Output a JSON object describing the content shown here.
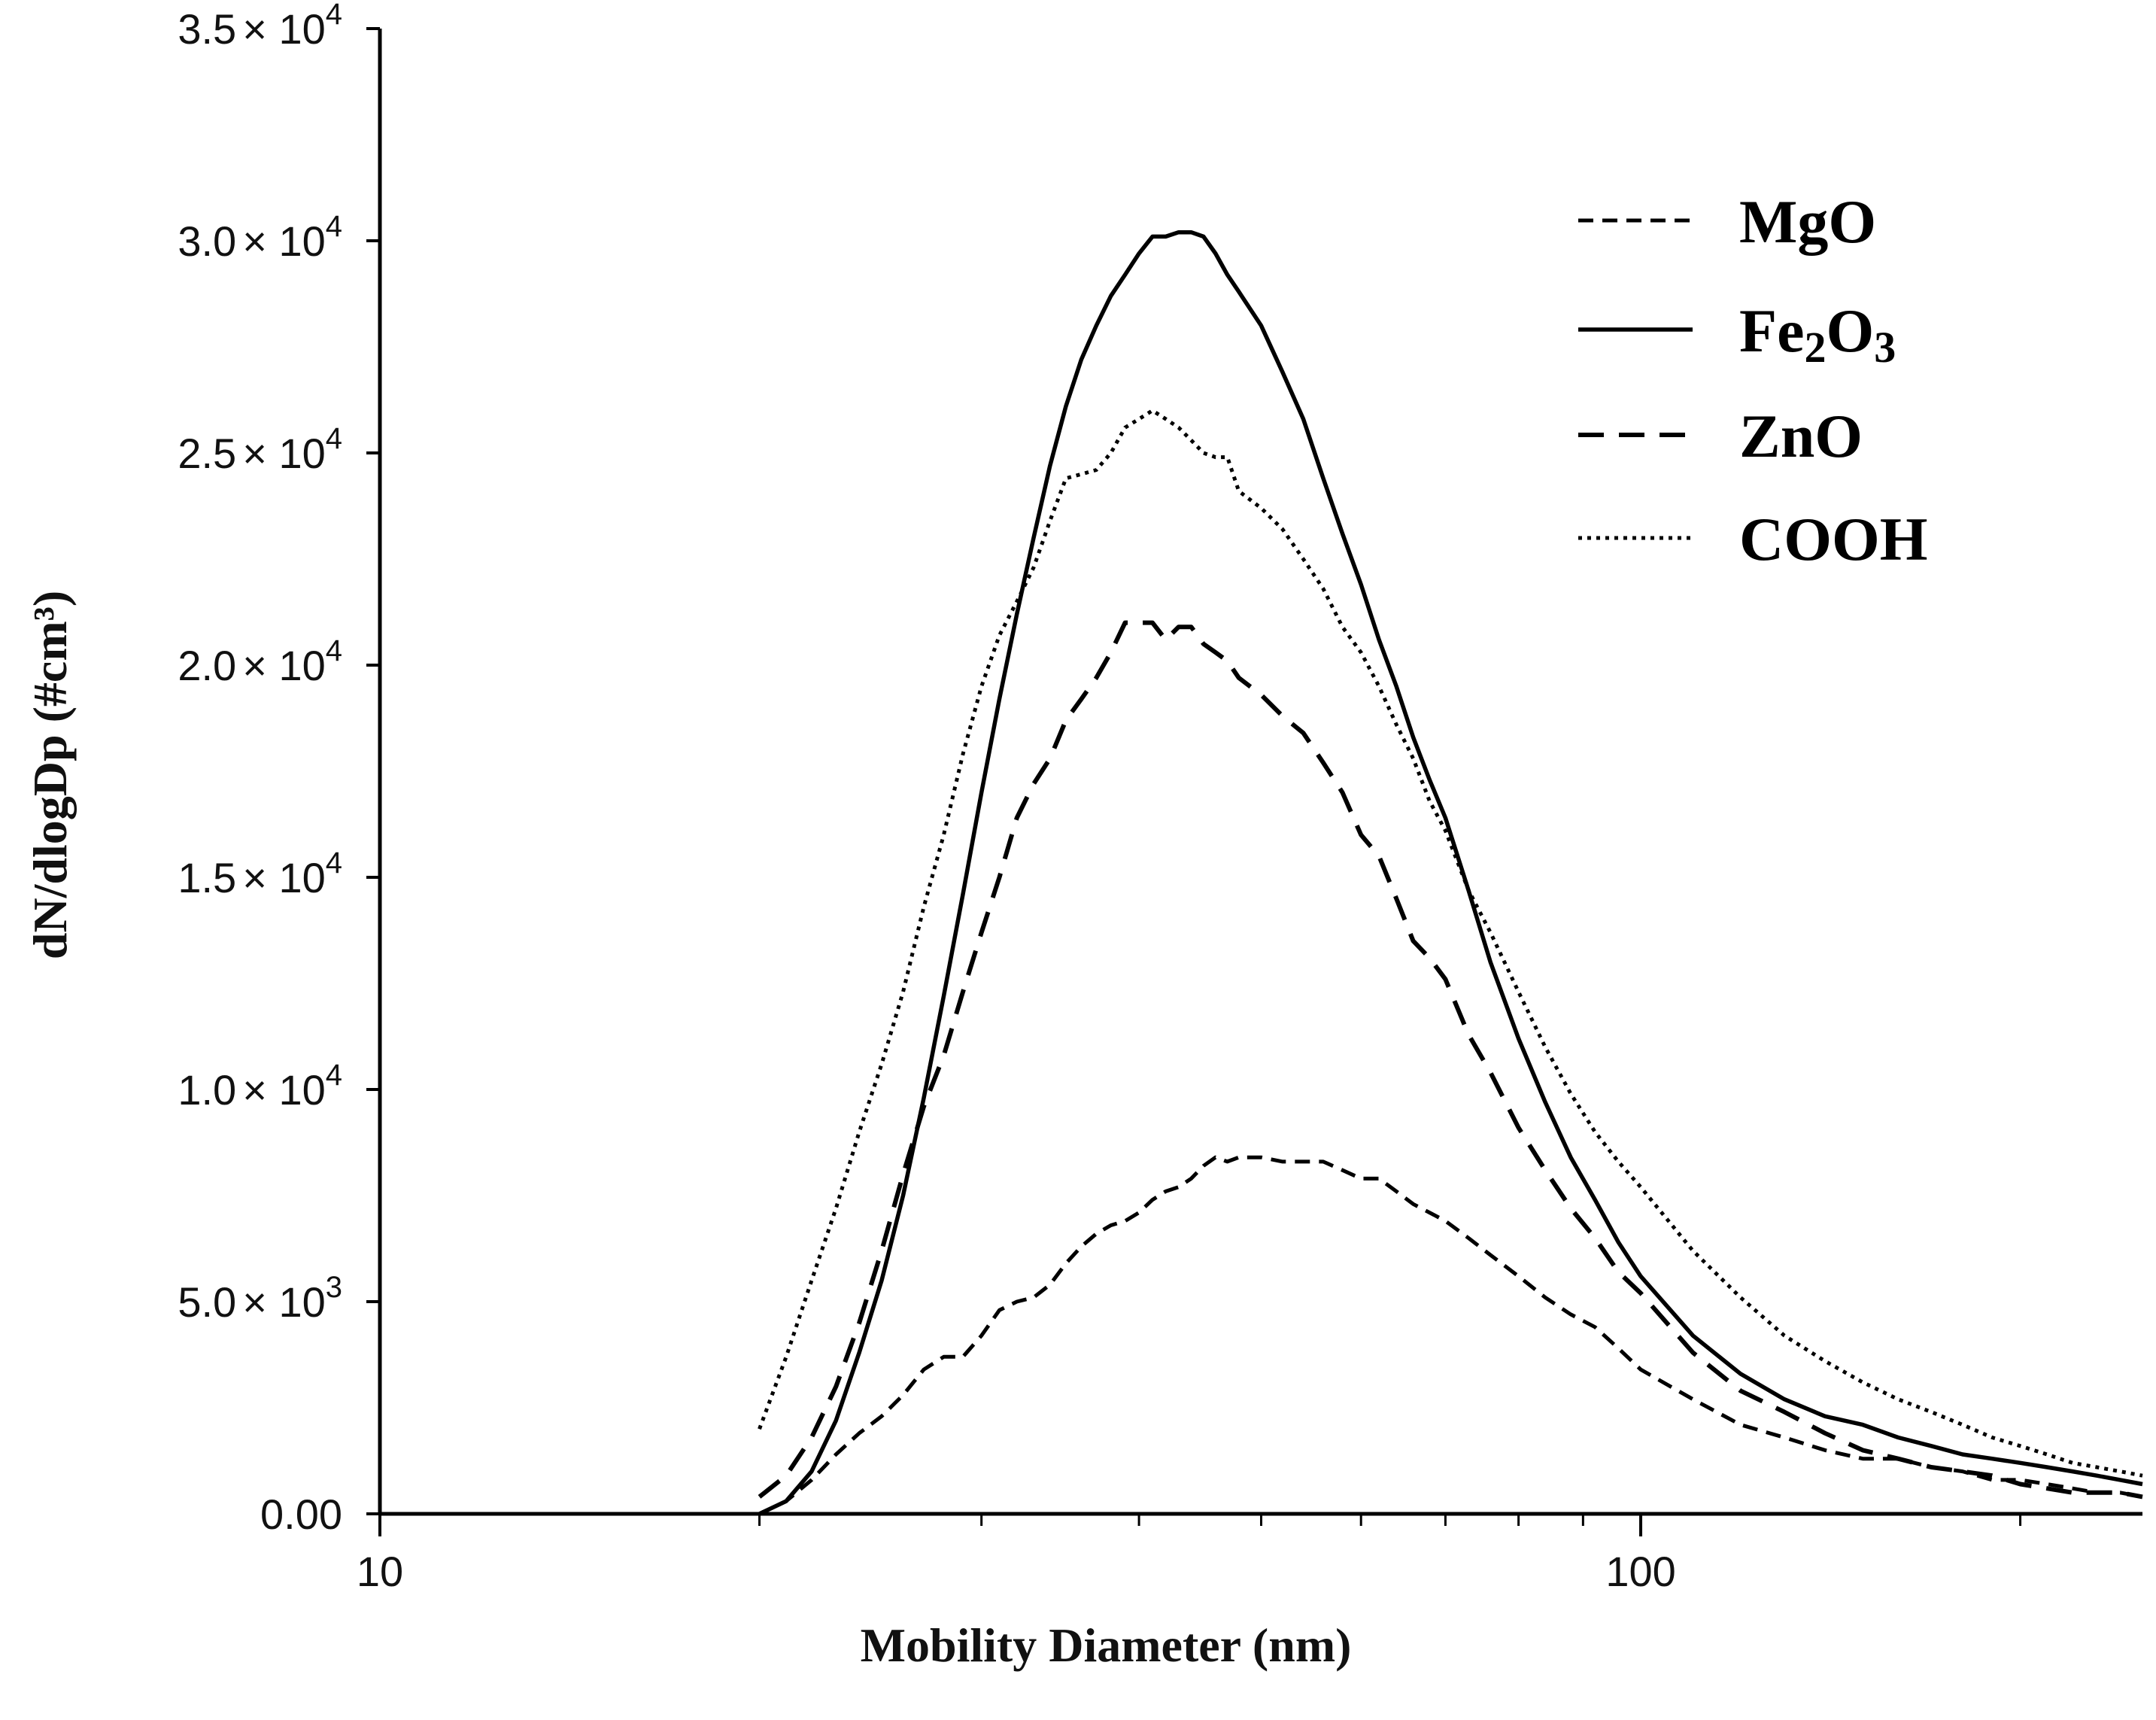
{
  "chart_data": {
    "type": "line",
    "title": "",
    "xlabel": "Mobility Diameter (nm)",
    "ylabel": "dN/dlogDp (#cm³)",
    "x_scale": "log",
    "xlim": [
      10,
      250
    ],
    "ylim": [
      0,
      35000
    ],
    "x_ticks": [
      {
        "value": 10,
        "label": "10"
      },
      {
        "value": 100,
        "label": "100"
      }
    ],
    "x_minor_ticks": [
      20,
      30,
      40,
      50,
      60,
      70,
      80,
      90,
      200
    ],
    "y_ticks": [
      {
        "value": 0,
        "mantissa": "0.00",
        "exp": ""
      },
      {
        "value": 5000,
        "mantissa": "5.0",
        "exp": "3"
      },
      {
        "value": 10000,
        "mantissa": "1.0",
        "exp": "4"
      },
      {
        "value": 15000,
        "mantissa": "1.5",
        "exp": "4"
      },
      {
        "value": 20000,
        "mantissa": "2.0",
        "exp": "4"
      },
      {
        "value": 25000,
        "mantissa": "2.5",
        "exp": "4"
      },
      {
        "value": 30000,
        "mantissa": "3.0",
        "exp": "4"
      },
      {
        "value": 35000,
        "mantissa": "3.5",
        "exp": "4"
      }
    ],
    "times_symbol": "×",
    "grid": false,
    "legend_position": "top-right",
    "series": [
      {
        "name": "MgO",
        "style": "dash",
        "x": [
          20,
          21,
          22,
          23,
          24,
          25,
          26,
          27,
          28,
          29,
          30,
          31,
          32,
          33,
          34,
          35,
          36,
          37,
          38,
          39,
          40,
          41,
          42,
          43,
          44,
          45,
          46,
          47,
          48,
          50,
          52,
          54,
          56,
          58,
          60,
          62,
          64,
          66,
          68,
          70,
          73,
          76,
          80,
          84,
          88,
          92,
          96,
          100,
          110,
          120,
          130,
          140,
          150,
          160,
          170,
          180,
          190,
          200,
          210,
          220,
          230,
          240,
          250
        ],
        "y": [
          0,
          300,
          800,
          1400,
          1900,
          2300,
          2800,
          3400,
          3700,
          3700,
          4200,
          4800,
          5000,
          5100,
          5400,
          5900,
          6300,
          6600,
          6800,
          6900,
          7100,
          7400,
          7600,
          7700,
          7900,
          8200,
          8400,
          8300,
          8400,
          8400,
          8300,
          8300,
          8300,
          8100,
          7900,
          7900,
          7600,
          7300,
          7100,
          6900,
          6500,
          6100,
          5600,
          5100,
          4700,
          4400,
          3900,
          3400,
          2700,
          2100,
          1800,
          1500,
          1300,
          1300,
          1100,
          1000,
          800,
          800,
          700,
          600,
          500,
          500,
          400
        ]
      },
      {
        "name": "Fe₂O₃",
        "name_base": "Fe",
        "name_sub1": "2",
        "name_mid": "O",
        "name_sub2": "3",
        "style": "solid",
        "x": [
          20,
          21,
          22,
          23,
          24,
          25,
          26,
          27,
          28,
          29,
          30,
          31,
          32,
          33,
          34,
          35,
          36,
          37,
          38,
          39,
          40,
          41,
          42,
          43,
          44,
          45,
          46,
          47,
          48,
          50,
          52,
          54,
          56,
          58,
          60,
          62,
          64,
          66,
          68,
          70,
          73,
          76,
          80,
          84,
          88,
          92,
          96,
          100,
          110,
          120,
          130,
          140,
          150,
          160,
          170,
          180,
          190,
          200,
          210,
          220,
          230,
          240,
          250
        ],
        "y": [
          0,
          300,
          1000,
          2200,
          3800,
          5500,
          7500,
          9800,
          12200,
          14600,
          17000,
          19200,
          21200,
          23000,
          24700,
          26100,
          27200,
          28000,
          28700,
          29200,
          29700,
          30100,
          30100,
          30200,
          30200,
          30100,
          29700,
          29200,
          28800,
          28000,
          26900,
          25800,
          24400,
          23100,
          21900,
          20600,
          19500,
          18300,
          17300,
          16400,
          14700,
          13000,
          11200,
          9700,
          8400,
          7400,
          6400,
          5600,
          4200,
          3300,
          2700,
          2300,
          2100,
          1800,
          1600,
          1400,
          1300,
          1200,
          1100,
          1000,
          900,
          800,
          700
        ]
      },
      {
        "name": "ZnO",
        "style": "longdash",
        "x": [
          20,
          21,
          22,
          23,
          24,
          25,
          26,
          27,
          28,
          29,
          30,
          31,
          32,
          33,
          34,
          35,
          36,
          37,
          38,
          39,
          40,
          41,
          42,
          43,
          44,
          45,
          46,
          47,
          48,
          50,
          52,
          54,
          56,
          58,
          60,
          62,
          64,
          66,
          68,
          70,
          73,
          76,
          80,
          84,
          88,
          92,
          96,
          100,
          110,
          120,
          130,
          140,
          150,
          160,
          170,
          180,
          190,
          200,
          210,
          220,
          230,
          240,
          250
        ],
        "y": [
          400,
          900,
          1800,
          3000,
          4500,
          6200,
          8000,
          9600,
          10800,
          12300,
          13700,
          15000,
          16400,
          17200,
          17800,
          18700,
          19200,
          19700,
          20300,
          21000,
          21000,
          21000,
          20600,
          20900,
          20900,
          20500,
          20300,
          20100,
          19700,
          19300,
          18800,
          18400,
          17700,
          17000,
          16000,
          15500,
          14500,
          13500,
          13100,
          12600,
          11300,
          10400,
          9100,
          8100,
          7200,
          6500,
          5700,
          5200,
          3800,
          2900,
          2400,
          1900,
          1500,
          1300,
          1100,
          1000,
          900,
          700,
          600,
          500,
          500,
          500,
          400
        ]
      },
      {
        "name": "COOH",
        "style": "dot",
        "x": [
          20,
          21,
          22,
          23,
          24,
          25,
          26,
          27,
          28,
          29,
          30,
          31,
          32,
          33,
          34,
          35,
          36,
          37,
          38,
          39,
          40,
          41,
          42,
          43,
          44,
          45,
          46,
          47,
          48,
          50,
          52,
          54,
          56,
          58,
          60,
          62,
          64,
          66,
          68,
          70,
          73,
          76,
          80,
          84,
          88,
          92,
          96,
          100,
          110,
          120,
          130,
          140,
          150,
          160,
          170,
          180,
          190,
          200,
          210,
          220,
          230,
          240,
          250
        ],
        "y": [
          2000,
          3700,
          5500,
          7200,
          9000,
          10600,
          12300,
          14300,
          16000,
          17900,
          19500,
          20700,
          21500,
          22300,
          23400,
          24400,
          24500,
          24600,
          25000,
          25600,
          25800,
          26000,
          25800,
          25600,
          25300,
          25000,
          24900,
          24900,
          24100,
          23700,
          23200,
          22500,
          21800,
          20900,
          20300,
          19500,
          18600,
          17800,
          16800,
          16100,
          14700,
          13700,
          12300,
          11000,
          9900,
          9000,
          8300,
          7700,
          6200,
          5100,
          4200,
          3600,
          3100,
          2700,
          2400,
          2100,
          1800,
          1600,
          1400,
          1200,
          1100,
          1000,
          900
        ]
      }
    ]
  }
}
